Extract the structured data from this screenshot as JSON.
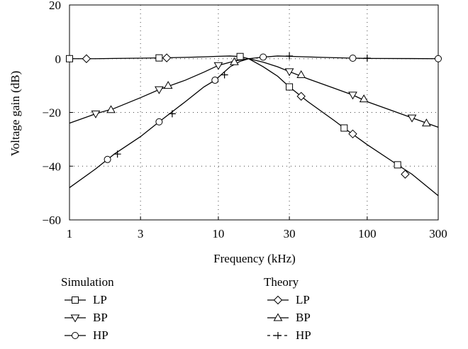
{
  "chart_data": {
    "type": "line",
    "title": "",
    "xlabel": "Frequency (kHz)",
    "ylabel": "Voltage gain (dB)",
    "xscale": "log",
    "xlim": [
      1,
      300
    ],
    "ylim": [
      -60,
      20
    ],
    "xticks": [
      1,
      3,
      10,
      30,
      100,
      300
    ],
    "xtick_labels": [
      "1",
      "3",
      "10",
      "30",
      "100",
      "300"
    ],
    "yticks": [
      20,
      0,
      -20,
      -40,
      -60
    ],
    "ytick_labels": [
      "20",
      "0",
      "−20",
      "−40",
      "−60"
    ],
    "grid": "dotted",
    "legend": {
      "placement": "bottom",
      "groups": [
        {
          "title": "Simulation",
          "entries": [
            "LP",
            "BP",
            "HP"
          ]
        },
        {
          "title": "Theory",
          "entries": [
            "LP",
            "BP",
            "HP"
          ]
        }
      ]
    },
    "series": [
      {
        "group": "Simulation",
        "name": "LP",
        "marker": "square",
        "line": "solid",
        "x": [
          1,
          1.5,
          2,
          3,
          4,
          6,
          8,
          10,
          12,
          14,
          16,
          20,
          25,
          30,
          40,
          60,
          70,
          100,
          160,
          200,
          300
        ],
        "y": [
          0,
          0,
          0.1,
          0.2,
          0.3,
          0.5,
          0.7,
          0.9,
          1.0,
          0.8,
          0,
          -3,
          -6.5,
          -10.5,
          -16,
          -23,
          -25.8,
          -32,
          -39.5,
          -43,
          -51
        ]
      },
      {
        "group": "Simulation",
        "name": "BP",
        "marker": "triangle-down",
        "line": "solid",
        "x": [
          1,
          1.5,
          2,
          3,
          4,
          6,
          8,
          10,
          13,
          16,
          20,
          25,
          30,
          40,
          60,
          80,
          100,
          150,
          200,
          300
        ],
        "y": [
          -24,
          -20.5,
          -18.5,
          -14.5,
          -11.5,
          -8,
          -5,
          -2.5,
          -0.8,
          0,
          -1.3,
          -3,
          -4.8,
          -7.5,
          -11,
          -13.5,
          -16,
          -19.5,
          -22,
          -25.5
        ]
      },
      {
        "group": "Simulation",
        "name": "HP",
        "marker": "circle",
        "line": "solid",
        "x": [
          1,
          1.5,
          1.8,
          2,
          3,
          4,
          6,
          8,
          9.5,
          12,
          14,
          16,
          20,
          25,
          30,
          50,
          80,
          100,
          200,
          300
        ],
        "y": [
          -48,
          -41,
          -37.5,
          -35.5,
          -29,
          -23.5,
          -16,
          -10.5,
          -8,
          -3,
          -1,
          0,
          0.6,
          1,
          0.9,
          0.5,
          0.2,
          0.1,
          0.05,
          0
        ]
      },
      {
        "group": "Theory",
        "name": "LP",
        "marker": "diamond",
        "line": "solid",
        "x": [
          1.3,
          4.5,
          36,
          80,
          180
        ],
        "y": [
          0,
          0.3,
          -14,
          -28,
          -43
        ]
      },
      {
        "group": "Theory",
        "name": "BP",
        "marker": "triangle-up",
        "line": "solid",
        "x": [
          1.9,
          4.6,
          12.8,
          36,
          95,
          250
        ],
        "y": [
          -19,
          -10,
          -1.2,
          -6,
          -15,
          -24
        ]
      },
      {
        "group": "Theory",
        "name": "HP",
        "marker": "plus",
        "line": "dashed",
        "x": [
          2.1,
          4.9,
          11,
          30,
          100
        ],
        "y": [
          -35.5,
          -20.5,
          -6,
          1,
          0.2
        ]
      }
    ]
  }
}
